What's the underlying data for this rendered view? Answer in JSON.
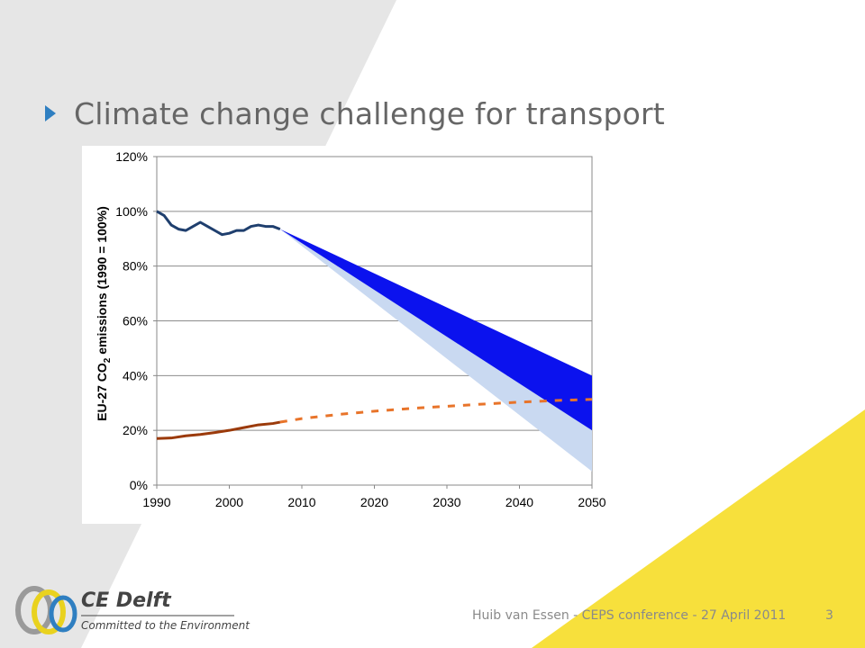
{
  "slide": {
    "title": "Climate change challenge for transport",
    "footer": "Huib van Essen - CEPS conference - 27 April 2011",
    "page_number": "3"
  },
  "logo": {
    "name": "CE Delft",
    "tagline": "Committed to the Environment"
  },
  "colors": {
    "background_gray": "#e6e6e6",
    "accent_yellow": "#f7e03c",
    "title_bullet": "#2f7fc1"
  },
  "chart_data": {
    "type": "line",
    "ylabel_parts": [
      "EU-27 CO",
      "2",
      " emissions (1990 = 100%)"
    ],
    "x_ticks": [
      "1990",
      "2000",
      "2010",
      "2020",
      "2030",
      "2040",
      "2050"
    ],
    "y_ticks": [
      "0%",
      "20%",
      "40%",
      "60%",
      "80%",
      "100%",
      "120%"
    ],
    "xlim": [
      1990,
      2050
    ],
    "ylim": [
      0,
      120
    ],
    "grid": true,
    "series": [
      {
        "style": "solid",
        "color": "#1f3f6e",
        "x": [
          1990,
          1991,
          1992,
          1993,
          1994,
          1995,
          1996,
          1997,
          1998,
          1999,
          2000,
          2001,
          2002,
          2003,
          2004,
          2005,
          2006,
          2007
        ],
        "y": [
          100,
          98.5,
          95,
          93.5,
          93,
          94.5,
          96,
          94.5,
          93,
          91.5,
          92,
          93,
          93,
          94.5,
          95,
          94.5,
          94.5,
          93.5
        ]
      },
      {
        "style": "solid",
        "color": "#9b3a0a",
        "x": [
          1990,
          1992,
          1994,
          1996,
          1998,
          2000,
          2002,
          2004,
          2006,
          2007
        ],
        "y": [
          17,
          17.2,
          18,
          18.5,
          19.2,
          20,
          21,
          22,
          22.5,
          23
        ]
      },
      {
        "style": "dashed",
        "color": "#e8742a",
        "x": [
          2007,
          2010,
          2015,
          2020,
          2025,
          2030,
          2035,
          2040,
          2045,
          2050
        ],
        "y": [
          23,
          24.3,
          25.8,
          27,
          28,
          28.8,
          29.6,
          30.3,
          30.9,
          31.3
        ]
      }
    ],
    "bands": [
      {
        "color": "#c9d9f1",
        "x": [
          2007,
          2050
        ],
        "upper": [
          93.5,
          20
        ],
        "lower": [
          93.5,
          5
        ]
      },
      {
        "color": "#0b12ee",
        "x": [
          2007,
          2050
        ],
        "upper": [
          93.5,
          40
        ],
        "lower": [
          93.5,
          20
        ]
      }
    ]
  }
}
